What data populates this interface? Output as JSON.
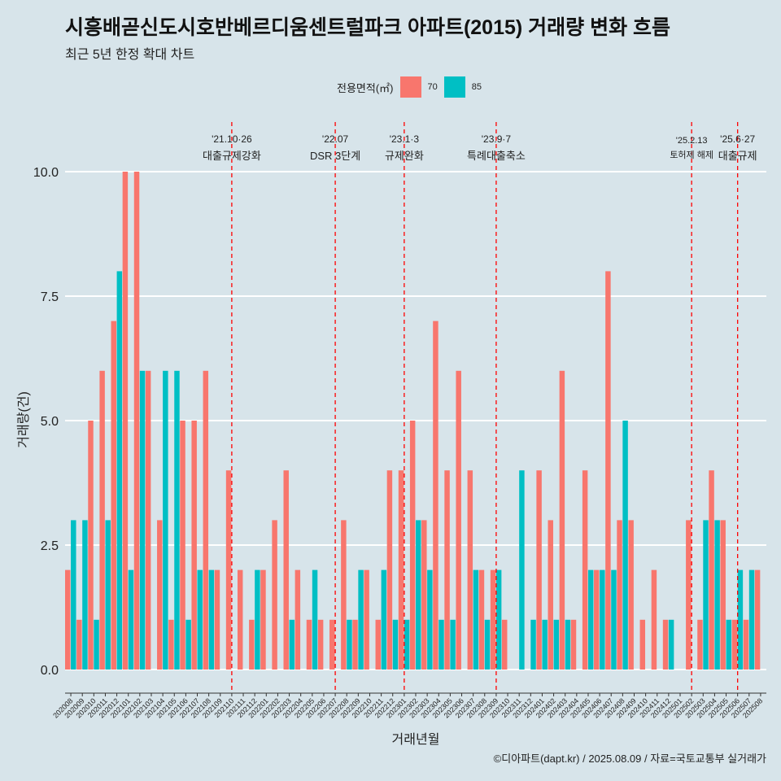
{
  "title": "시흥배곧신도시호반베르디움센트럴파크 아파트(2015) 거래량 변화 흐름",
  "subtitle": "최근 5년 한정 확대 차트",
  "caption": "©디아파트(dapt.kr) / 2025.08.09 / 자료=국토교통부 실거래가",
  "legend": {
    "title": "전용면적(㎡)",
    "items": [
      {
        "label": "70",
        "color": "#f8766d"
      },
      {
        "label": "85",
        "color": "#00bfc4"
      }
    ]
  },
  "chart_data": {
    "type": "bar",
    "title": "시흥배곧신도시호반베르디움센트럴파크 아파트(2015) 거래량 변화 흐름",
    "xlabel": "거래년월",
    "ylabel": "거래량(건)",
    "ylim": [
      -0.45,
      10.6
    ],
    "yticks": [
      0.0,
      2.5,
      5.0,
      7.5,
      10.0
    ],
    "ytick_labels": [
      "0.0",
      "2.5",
      "5.0",
      "7.5",
      "10.0"
    ],
    "grid": true,
    "legend_position": "top",
    "categories": [
      "202008",
      "202009",
      "202010",
      "202011",
      "202012",
      "202101",
      "202102",
      "202103",
      "202104",
      "202105",
      "202106",
      "202107",
      "202108",
      "202109",
      "202110",
      "202111",
      "202112",
      "202201",
      "202202",
      "202203",
      "202204",
      "202205",
      "202206",
      "202207",
      "202208",
      "202209",
      "202210",
      "202211",
      "202212",
      "202301",
      "202302",
      "202303",
      "202304",
      "202305",
      "202306",
      "202307",
      "202308",
      "202309",
      "202310",
      "202311",
      "202312",
      "202401",
      "202402",
      "202403",
      "202404",
      "202405",
      "202406",
      "202407",
      "202408",
      "202409",
      "202410",
      "202411",
      "202412",
      "202501",
      "202502",
      "202503",
      "202504",
      "202505",
      "202506",
      "202507",
      "202508"
    ],
    "series": [
      {
        "name": "70",
        "color": "#f8766d",
        "values": [
          2,
          1,
          5,
          6,
          7,
          10,
          10,
          6,
          3,
          1,
          5,
          5,
          6,
          2,
          4,
          2,
          1,
          2,
          3,
          4,
          2,
          1,
          1,
          1,
          3,
          1,
          2,
          1,
          4,
          4,
          5,
          3,
          7,
          4,
          6,
          4,
          2,
          2,
          1,
          0,
          0,
          4,
          3,
          6,
          1,
          4,
          2,
          8,
          3,
          3,
          1,
          2,
          1,
          0,
          3,
          1,
          4,
          3,
          1,
          1,
          2
        ]
      },
      {
        "name": "85",
        "color": "#00bfc4",
        "values": [
          3,
          3,
          1,
          3,
          8,
          2,
          6,
          0,
          6,
          6,
          1,
          2,
          2,
          0,
          0,
          0,
          2,
          0,
          0,
          1,
          0,
          2,
          0,
          0,
          1,
          2,
          0,
          2,
          1,
          1,
          3,
          2,
          1,
          1,
          0,
          2,
          1,
          2,
          0,
          4,
          1,
          1,
          1,
          1,
          0,
          2,
          2,
          2,
          5,
          0,
          0,
          0,
          1,
          0,
          0,
          3,
          3,
          1,
          2,
          2,
          0
        ]
      }
    ],
    "events": [
      {
        "date": "'21.10·26",
        "label": "대출규제강화",
        "month": "202110"
      },
      {
        "date": "'22.07",
        "label": "DSR 3단계",
        "month": "202207"
      },
      {
        "date": "'23.1·3",
        "label": "규제완화",
        "month": "202301"
      },
      {
        "date": "'23.9·7",
        "label": "특례대출축소",
        "month": "202309"
      },
      {
        "date": "'25.2.13",
        "label": "토허제 해제",
        "month": "202502"
      },
      {
        "date": "'25.6·27",
        "label": "대출규제",
        "month": "202506"
      }
    ]
  }
}
